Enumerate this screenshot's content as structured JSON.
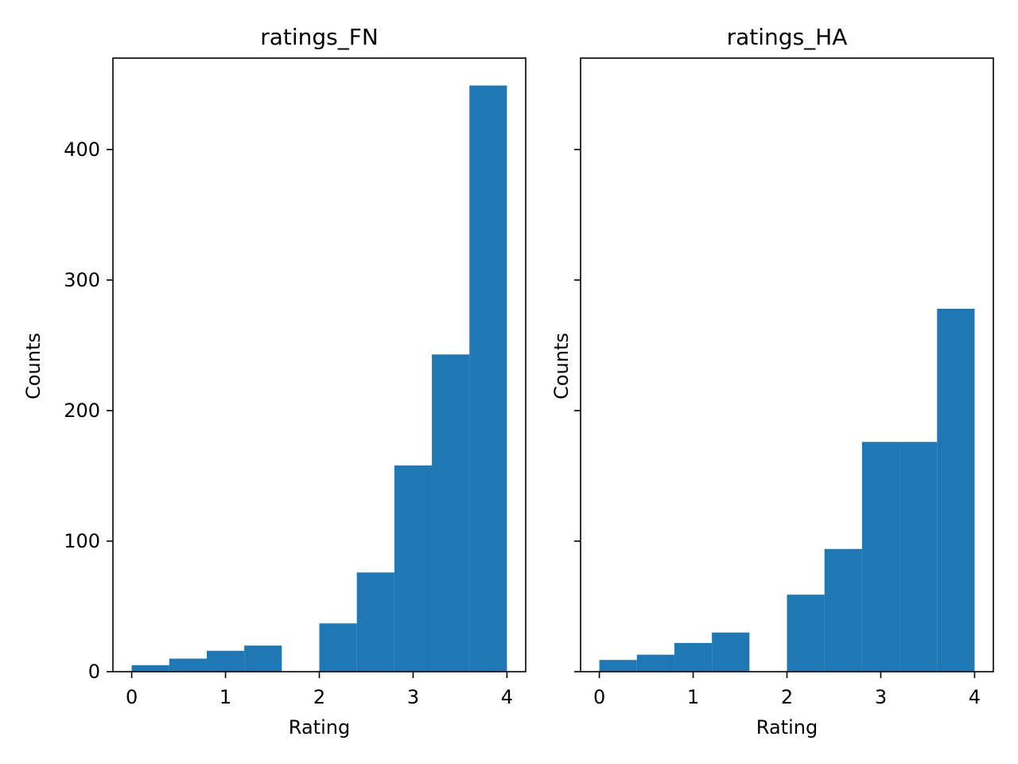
{
  "chart_data": [
    {
      "type": "bar",
      "title": "ratings_FN",
      "xlabel": "Rating",
      "ylabel": "Counts",
      "bin_edges": [
        0,
        0.4,
        0.8,
        1.2,
        1.6,
        2.0,
        2.4,
        2.8,
        3.2,
        3.6,
        4.0
      ],
      "values": [
        5,
        10,
        16,
        20,
        0,
        37,
        76,
        158,
        243,
        449
      ],
      "xlim": [
        -0.2,
        4.2
      ],
      "ylim": [
        0,
        470
      ],
      "xticks": [
        0,
        1,
        2,
        3,
        4
      ],
      "yticks": [
        0,
        100,
        200,
        300,
        400
      ],
      "show_ytick_labels": true,
      "color": "#1f77b4",
      "grid": false
    },
    {
      "type": "bar",
      "title": "ratings_HA",
      "xlabel": "Rating",
      "ylabel": "Counts",
      "bin_edges": [
        0,
        0.4,
        0.8,
        1.2,
        1.6,
        2.0,
        2.4,
        2.8,
        3.2,
        3.6,
        4.0
      ],
      "values": [
        9,
        13,
        22,
        30,
        0,
        59,
        94,
        176,
        176,
        278
      ],
      "xlim": [
        -0.2,
        4.2
      ],
      "ylim": [
        0,
        470
      ],
      "xticks": [
        0,
        1,
        2,
        3,
        4
      ],
      "yticks": [
        0,
        100,
        200,
        300,
        400
      ],
      "show_ytick_labels": false,
      "color": "#1f77b4",
      "grid": false
    }
  ]
}
